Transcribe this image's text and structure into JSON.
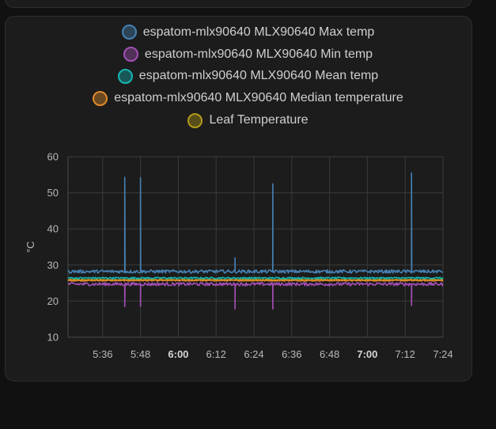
{
  "chart_data": {
    "type": "line",
    "ylabel": "°C",
    "ylim": [
      10,
      60
    ],
    "yticks": [
      10,
      20,
      30,
      40,
      50,
      60
    ],
    "xlim": [
      "5:25",
      "7:24"
    ],
    "xticks": [
      {
        "label": "5:36",
        "bold": false
      },
      {
        "label": "5:48",
        "bold": false
      },
      {
        "label": "6:00",
        "bold": true
      },
      {
        "label": "6:12",
        "bold": false
      },
      {
        "label": "6:24",
        "bold": false
      },
      {
        "label": "6:36",
        "bold": false
      },
      {
        "label": "6:48",
        "bold": false
      },
      {
        "label": "7:00",
        "bold": true
      },
      {
        "label": "7:12",
        "bold": false
      },
      {
        "label": "7:24",
        "bold": false
      }
    ],
    "grid": true,
    "legend_position": "top",
    "series": [
      {
        "name": "espatom-mlx90640 MLX90640 Max temp",
        "color": "#4682b4",
        "base": 28.2,
        "spikes": [
          {
            "t": "5:43",
            "v": 54.3
          },
          {
            "t": "5:48",
            "v": 54.2
          },
          {
            "t": "6:18",
            "v": 32.0
          },
          {
            "t": "6:30",
            "v": 52.5
          },
          {
            "t": "7:14",
            "v": 55.5
          }
        ]
      },
      {
        "name": "espatom-mlx90640 MLX90640 Min temp",
        "color": "#a34fb5",
        "base": 24.7,
        "spikes": [
          {
            "t": "5:43",
            "v": 18.5
          },
          {
            "t": "5:48",
            "v": 18.5
          },
          {
            "t": "6:18",
            "v": 17.8
          },
          {
            "t": "6:30",
            "v": 17.8
          },
          {
            "t": "7:14",
            "v": 18.8
          }
        ]
      },
      {
        "name": "espatom-mlx90640 MLX90640 Mean temp",
        "color": "#17b5b5",
        "base": 26.4,
        "spikes": []
      },
      {
        "name": "espatom-mlx90640 MLX90640 Median temperature",
        "color": "#e28b2a",
        "base": 25.7,
        "spikes": []
      },
      {
        "name": "Leaf Temperature",
        "color": "#b39b1a",
        "base": 25.9,
        "spikes": []
      }
    ]
  }
}
